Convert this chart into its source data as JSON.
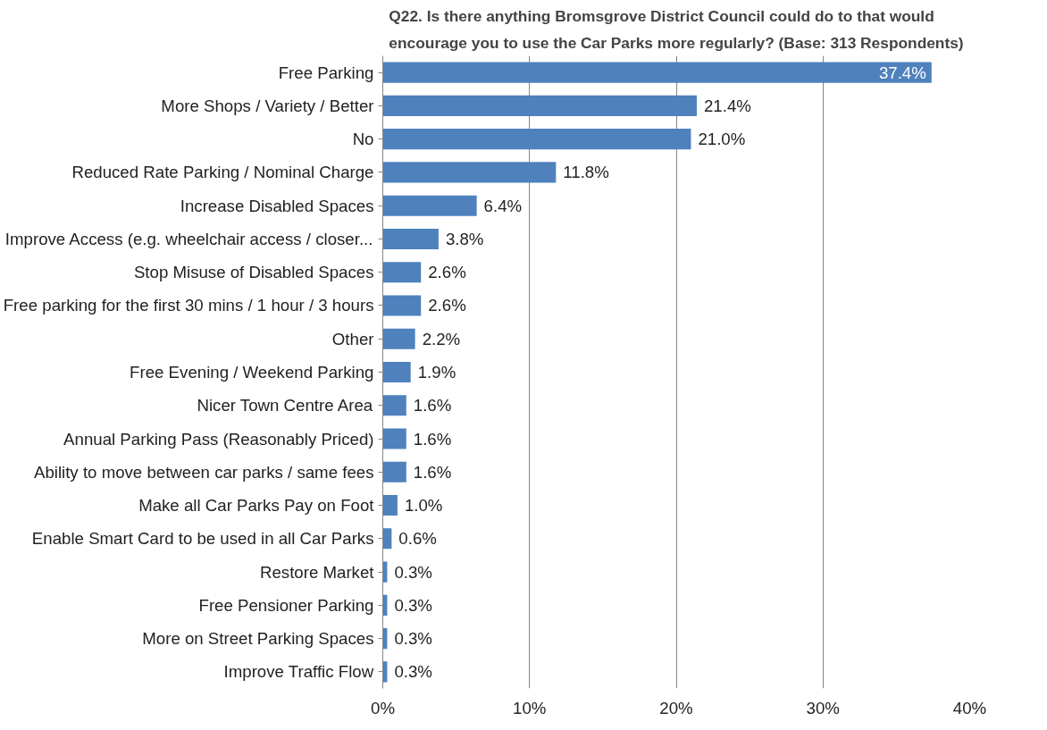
{
  "chart_data": {
    "type": "bar",
    "orientation": "horizontal",
    "title": "Q22. Is there anything Bromsgrove District Council could do to that would encourage you to use the Car Parks more regularly? (Base: 313 Respondents)",
    "categories": [
      "Free Parking",
      "More Shops / Variety / Better",
      "No",
      "Reduced Rate Parking / Nominal Charge",
      "Increase Disabled Spaces",
      "Improve Access (e.g. wheelchair access / closer...",
      "Stop Misuse of Disabled Spaces",
      "Free parking for the first 30 mins / 1 hour / 3 hours",
      "Other",
      "Free Evening / Weekend Parking",
      "Nicer Town Centre Area",
      "Annual Parking Pass (Reasonably Priced)",
      "Ability to move between car parks / same fees",
      "Make all Car Parks Pay on Foot",
      "Enable Smart Card to be used in all Car Parks",
      "Restore Market",
      "Free Pensioner Parking",
      "More on Street Parking Spaces",
      "Improve Traffic Flow"
    ],
    "values": [
      37.4,
      21.4,
      21.0,
      11.8,
      6.4,
      3.8,
      2.6,
      2.6,
      2.2,
      1.9,
      1.6,
      1.6,
      1.6,
      1.0,
      0.6,
      0.3,
      0.3,
      0.3,
      0.3
    ],
    "value_labels": [
      "37.4%",
      "21.4%",
      "21.0%",
      "11.8%",
      "6.4%",
      "3.8%",
      "2.6%",
      "2.6%",
      "2.2%",
      "1.9%",
      "1.6%",
      "1.6%",
      "1.6%",
      "1.0%",
      "0.6%",
      "0.3%",
      "0.3%",
      "0.3%",
      "0.3%"
    ],
    "color": "#4f81bd",
    "xlim": [
      0,
      40
    ],
    "xticks": [
      {
        "value": 0,
        "label": "0%"
      },
      {
        "value": 10,
        "label": "10%"
      },
      {
        "value": 20,
        "label": "20%"
      },
      {
        "value": 30,
        "label": "30%"
      },
      {
        "value": 40,
        "label": "40%"
      }
    ],
    "grid": "x"
  }
}
